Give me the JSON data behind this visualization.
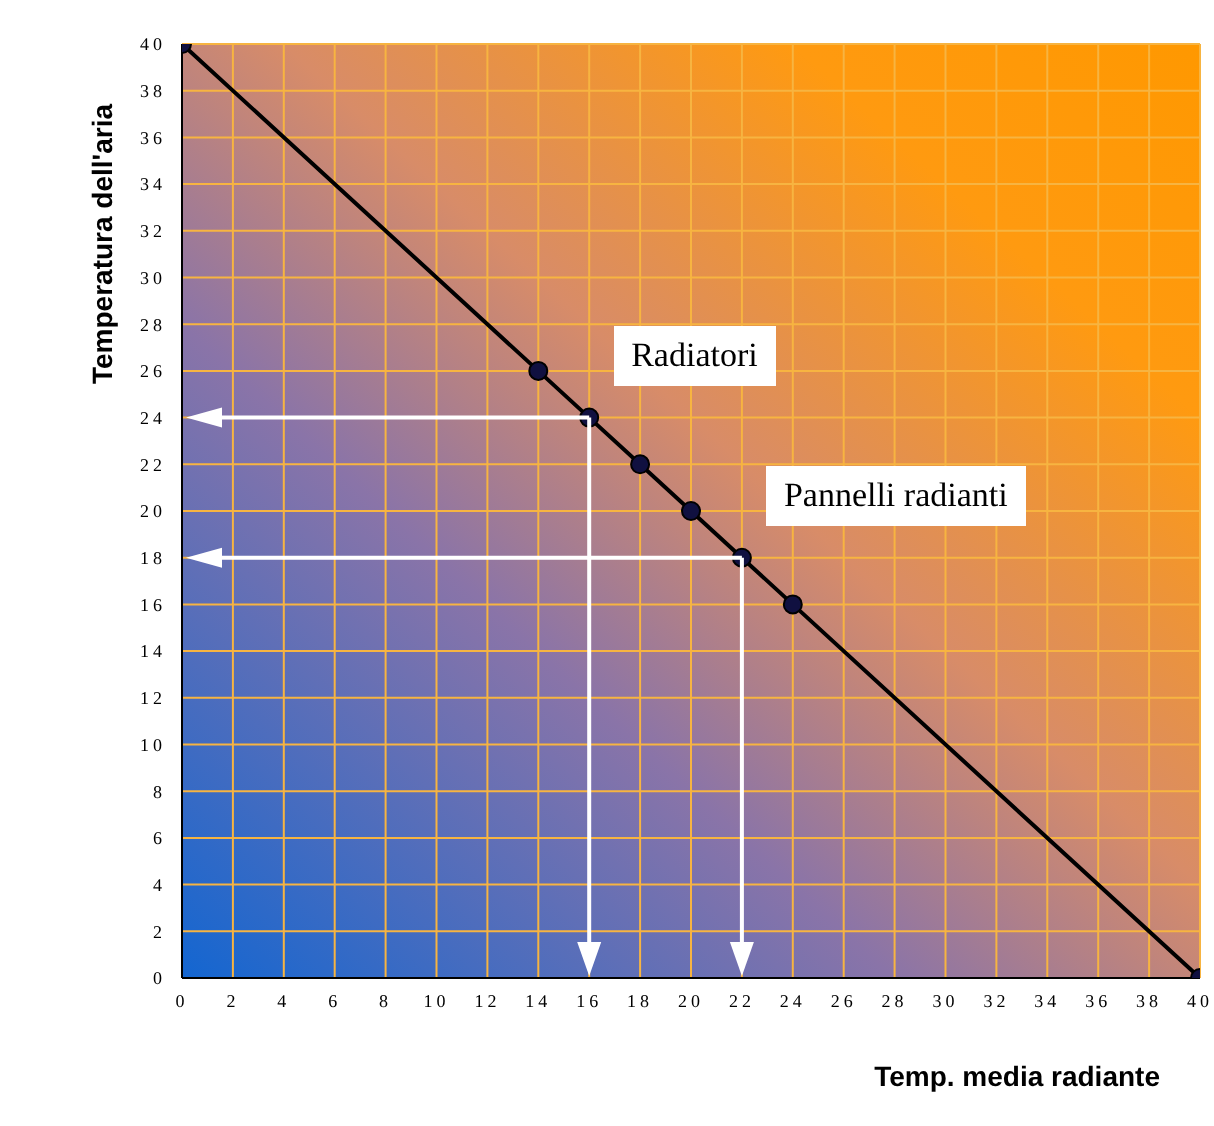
{
  "chart_data": {
    "type": "line",
    "xlabel": "Temp. media radiante",
    "ylabel": "Temperatura dell'aria",
    "x": [
      0,
      14,
      16,
      18,
      20,
      22,
      24,
      40
    ],
    "series": [
      {
        "color": "#000000",
        "values": [
          40,
          26,
          24,
          22,
          20,
          18,
          16,
          0
        ]
      }
    ],
    "xlim": [
      0,
      40
    ],
    "xticks": [
      0,
      2,
      4,
      6,
      8,
      10,
      12,
      14,
      16,
      18,
      20,
      22,
      24,
      26,
      28,
      30,
      32,
      34,
      36,
      38,
      40
    ],
    "ylim": [
      0,
      40
    ],
    "yticks": [
      0,
      2,
      4,
      6,
      8,
      10,
      12,
      14,
      16,
      18,
      20,
      22,
      24,
      26,
      28,
      30,
      32,
      34,
      36,
      38,
      40
    ],
    "grid": true,
    "marker": "circle",
    "annotations": [
      {
        "text": "Radiatori",
        "x": 16,
        "y": 24
      },
      {
        "text": "Pannelli radianti",
        "x": 22,
        "y": 18
      }
    ]
  }
}
